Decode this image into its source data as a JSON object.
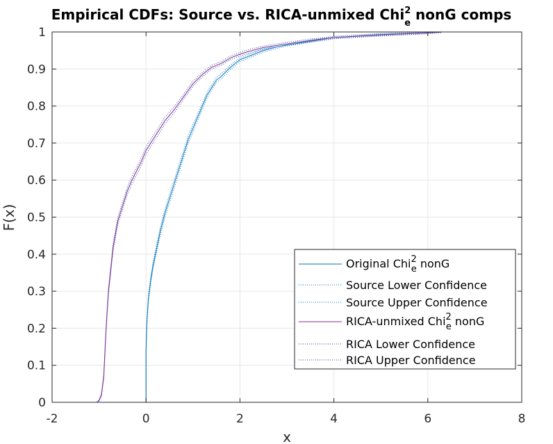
{
  "chart_data": {
    "type": "line",
    "title": {
      "prefix": "Empirical CDFs: Source vs. RICA-unmixed Chi",
      "sup": "2",
      "sub": "e",
      "suffix": " nonG comps"
    },
    "xlabel": "x",
    "ylabel": "F(x)",
    "xlim": [
      -2,
      8
    ],
    "ylim": [
      0,
      1
    ],
    "xticks": [
      -2,
      0,
      2,
      4,
      6,
      8
    ],
    "yticks": [
      0,
      0.1,
      0.2,
      0.3,
      0.4,
      0.5,
      0.6,
      0.7,
      0.8,
      0.9,
      1
    ],
    "grid": true,
    "legend_position": "lower-right",
    "series": [
      {
        "name_parts": {
          "prefix": "Original Chi",
          "sup": "2",
          "sub": "e",
          "suffix": " nonG"
        },
        "color": "#0072BD",
        "style": "solid",
        "x": [
          0.0,
          0.0,
          0.02,
          0.05,
          0.1,
          0.15,
          0.2,
          0.3,
          0.4,
          0.5,
          0.6,
          0.7,
          0.8,
          0.9,
          1.0,
          1.1,
          1.2,
          1.3,
          1.4,
          1.5,
          1.6,
          1.8,
          2.0,
          2.2,
          2.5,
          2.8,
          3.0,
          3.5,
          4.0,
          5.0,
          6.0,
          6.3
        ],
        "y": [
          0.0,
          0.14,
          0.22,
          0.28,
          0.33,
          0.37,
          0.4,
          0.46,
          0.51,
          0.55,
          0.59,
          0.63,
          0.67,
          0.71,
          0.74,
          0.77,
          0.8,
          0.83,
          0.85,
          0.87,
          0.88,
          0.905,
          0.925,
          0.935,
          0.95,
          0.96,
          0.965,
          0.975,
          0.985,
          0.993,
          0.998,
          1.0
        ]
      },
      {
        "name": "Source Lower Confidence",
        "color": "#0072BD",
        "style": "dotted",
        "x": [
          0.0,
          0.0,
          0.02,
          0.05,
          0.1,
          0.15,
          0.2,
          0.3,
          0.4,
          0.5,
          0.6,
          0.7,
          0.8,
          0.9,
          1.0,
          1.1,
          1.2,
          1.3,
          1.4,
          1.5,
          1.6,
          1.8,
          2.0,
          2.2,
          2.5,
          2.8,
          3.0,
          3.5,
          4.0,
          5.0,
          6.0,
          6.3
        ],
        "y": [
          0.0,
          0.135,
          0.214,
          0.273,
          0.322,
          0.361,
          0.39,
          0.449,
          0.499,
          0.539,
          0.579,
          0.619,
          0.66,
          0.7,
          0.73,
          0.761,
          0.792,
          0.822,
          0.843,
          0.863,
          0.873,
          0.899,
          0.92,
          0.93,
          0.946,
          0.956,
          0.962,
          0.972,
          0.982,
          0.99,
          0.996,
          0.999
        ]
      },
      {
        "name": "Source Upper Confidence",
        "color": "#0072BD",
        "style": "dotted",
        "x": [
          0.0,
          0.0,
          0.02,
          0.05,
          0.1,
          0.15,
          0.2,
          0.3,
          0.4,
          0.5,
          0.6,
          0.7,
          0.8,
          0.9,
          1.0,
          1.1,
          1.2,
          1.3,
          1.4,
          1.5,
          1.6,
          1.8,
          2.0,
          2.2,
          2.5,
          2.8,
          3.0,
          3.5,
          4.0,
          5.0,
          6.0,
          6.3
        ],
        "y": [
          0.0,
          0.146,
          0.227,
          0.287,
          0.338,
          0.379,
          0.41,
          0.471,
          0.521,
          0.561,
          0.601,
          0.641,
          0.68,
          0.72,
          0.75,
          0.779,
          0.808,
          0.838,
          0.857,
          0.877,
          0.887,
          0.911,
          0.93,
          0.94,
          0.954,
          0.964,
          0.968,
          0.978,
          0.988,
          0.996,
          1.0,
          1.0
        ]
      },
      {
        "name_parts": {
          "prefix": "RICA-unmixed Chi",
          "sup": "2",
          "sub": "e",
          "suffix": " nonG"
        },
        "color": "#7E2F8E",
        "style": "solid",
        "x": [
          -1.05,
          -1.0,
          -0.95,
          -0.9,
          -0.85,
          -0.8,
          -0.7,
          -0.6,
          -0.5,
          -0.4,
          -0.3,
          -0.2,
          -0.1,
          0.0,
          0.2,
          0.4,
          0.6,
          0.8,
          1.0,
          1.2,
          1.4,
          1.6,
          1.8,
          2.0,
          2.2,
          2.5,
          3.0,
          3.5,
          4.0,
          5.0,
          6.0,
          6.3
        ],
        "y": [
          0.0,
          0.005,
          0.02,
          0.07,
          0.2,
          0.3,
          0.42,
          0.49,
          0.53,
          0.57,
          0.6,
          0.625,
          0.65,
          0.68,
          0.72,
          0.76,
          0.79,
          0.825,
          0.86,
          0.885,
          0.905,
          0.915,
          0.93,
          0.94,
          0.948,
          0.958,
          0.968,
          0.977,
          0.985,
          0.992,
          0.998,
          1.0
        ]
      },
      {
        "name": "RICA Lower Confidence",
        "color": "#2E3FA8",
        "style": "dotted",
        "x": [
          -1.05,
          -1.0,
          -0.95,
          -0.9,
          -0.85,
          -0.8,
          -0.7,
          -0.6,
          -0.5,
          -0.4,
          -0.3,
          -0.2,
          -0.1,
          0.0,
          0.2,
          0.4,
          0.6,
          0.8,
          1.0,
          1.2,
          1.4,
          1.6,
          1.8,
          2.0,
          2.2,
          2.5,
          3.0,
          3.5,
          4.0,
          5.0,
          6.0,
          6.3
        ],
        "y": [
          0.0,
          0.003,
          0.016,
          0.064,
          0.192,
          0.291,
          0.41,
          0.48,
          0.52,
          0.56,
          0.59,
          0.615,
          0.64,
          0.67,
          0.711,
          0.751,
          0.782,
          0.818,
          0.853,
          0.879,
          0.9,
          0.91,
          0.925,
          0.935,
          0.943,
          0.954,
          0.964,
          0.973,
          0.982,
          0.989,
          0.995,
          0.998
        ]
      },
      {
        "name": "RICA Upper Confidence",
        "color": "#2E3FA8",
        "style": "dotted",
        "x": [
          -1.05,
          -1.0,
          -0.95,
          -0.9,
          -0.85,
          -0.8,
          -0.7,
          -0.6,
          -0.5,
          -0.4,
          -0.3,
          -0.2,
          -0.1,
          0.0,
          0.2,
          0.4,
          0.6,
          0.8,
          1.0,
          1.2,
          1.4,
          1.6,
          1.8,
          2.0,
          2.2,
          2.5,
          3.0,
          3.5,
          4.0,
          5.0,
          6.0,
          6.3
        ],
        "y": [
          0.0,
          0.007,
          0.024,
          0.076,
          0.208,
          0.309,
          0.43,
          0.5,
          0.54,
          0.58,
          0.61,
          0.635,
          0.66,
          0.69,
          0.729,
          0.769,
          0.798,
          0.832,
          0.867,
          0.891,
          0.91,
          0.92,
          0.935,
          0.945,
          0.953,
          0.962,
          0.972,
          0.981,
          0.988,
          0.995,
          1.0,
          1.0
        ]
      }
    ]
  }
}
